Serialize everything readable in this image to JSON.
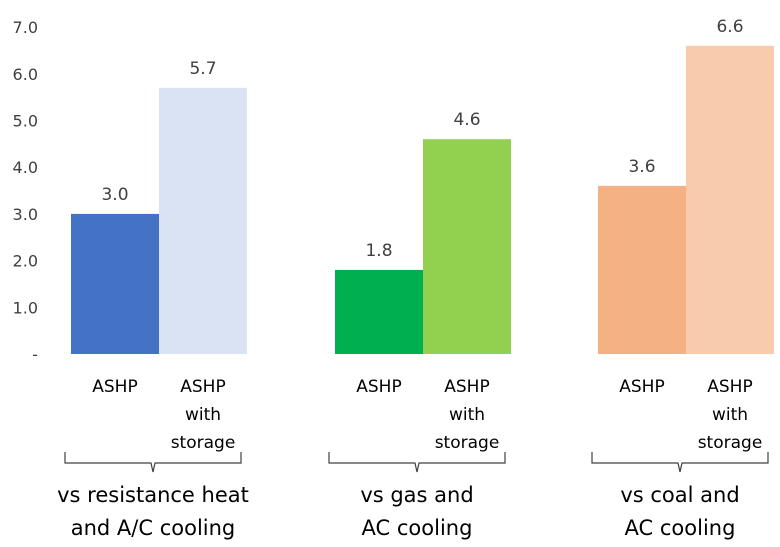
{
  "chart_data": {
    "type": "bar",
    "title": "",
    "xlabel": "",
    "ylabel": "",
    "ylim": [
      0,
      7
    ],
    "yticks": [
      "-",
      "1.0",
      "2.0",
      "3.0",
      "4.0",
      "5.0",
      "6.0",
      "7.0"
    ],
    "grid": false,
    "legend": "none",
    "groups": [
      {
        "label_lines": [
          "vs resistance heat",
          "and A/C cooling"
        ],
        "bars": [
          {
            "label_lines": [
              "ASHP"
            ],
            "value": 3.0,
            "value_label": "3.0",
            "color": "#4472C4"
          },
          {
            "label_lines": [
              "ASHP",
              "with",
              "storage"
            ],
            "value": 5.7,
            "value_label": "5.7",
            "color": "#DAE3F3"
          }
        ]
      },
      {
        "label_lines": [
          "vs gas and",
          "AC cooling"
        ],
        "bars": [
          {
            "label_lines": [
              "ASHP"
            ],
            "value": 1.8,
            "value_label": "1.8",
            "color": "#00B050"
          },
          {
            "label_lines": [
              "ASHP",
              "with",
              "storage"
            ],
            "value": 4.6,
            "value_label": "4.6",
            "color": "#92D050"
          }
        ]
      },
      {
        "label_lines": [
          "vs coal and",
          "AC cooling"
        ],
        "bars": [
          {
            "label_lines": [
              "ASHP"
            ],
            "value": 3.6,
            "value_label": "3.6",
            "color": "#F4B183"
          },
          {
            "label_lines": [
              "ASHP",
              "with",
              "storage"
            ],
            "value": 6.6,
            "value_label": "6.6",
            "color": "#F8CBAD"
          }
        ]
      }
    ]
  }
}
